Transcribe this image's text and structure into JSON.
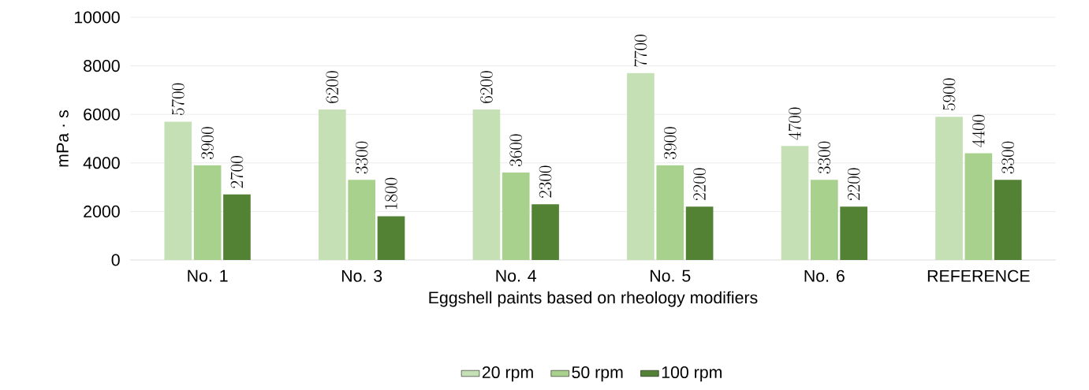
{
  "chart_data": {
    "type": "bar",
    "xlabel": "Eggshell paints based on rheology modifiers",
    "ylabel": "mPa · s",
    "categories": [
      "No. 1",
      "No. 3",
      "No. 4",
      "No. 5",
      "No. 6",
      "REFERENCE"
    ],
    "series": [
      {
        "name": "20 rpm",
        "color": "#c5e0b4",
        "values": [
          5700,
          6200,
          6200,
          7700,
          4700,
          5900
        ]
      },
      {
        "name": "50 rpm",
        "color": "#a9d18e",
        "values": [
          3900,
          3300,
          3600,
          3900,
          3300,
          4400
        ]
      },
      {
        "name": "100 rpm",
        "color": "#548235",
        "values": [
          2700,
          1800,
          2300,
          2200,
          2200,
          3300
        ]
      }
    ],
    "ylim": [
      0,
      10000
    ],
    "yticks": [
      0,
      2000,
      4000,
      6000,
      8000,
      10000
    ],
    "grid": "y",
    "legend": "bottom",
    "data_labels": true
  }
}
